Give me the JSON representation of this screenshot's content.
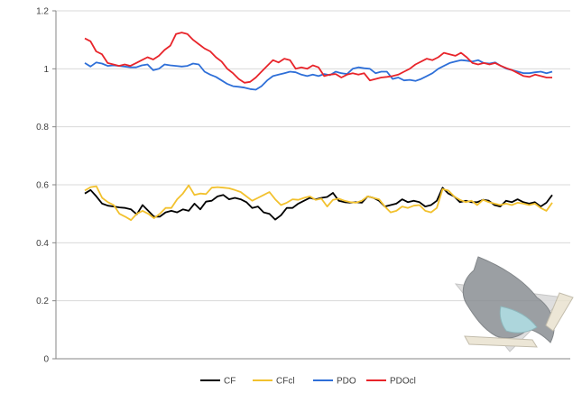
{
  "chart_data": {
    "type": "line",
    "title": "",
    "xlabel": "",
    "ylabel": "",
    "ylim": [
      0,
      1.2
    ],
    "y_ticks": [
      "0",
      "0.2",
      "0.4",
      "0.6",
      "0.8",
      "1",
      "1.2"
    ],
    "grid": "horizontal",
    "legend_position": "bottom",
    "series": [
      {
        "name": "CF",
        "color": "#000000",
        "values": [
          0.57,
          0.582,
          0.56,
          0.535,
          0.528,
          0.525,
          0.522,
          0.52,
          0.515,
          0.498,
          0.53,
          0.51,
          0.49,
          0.49,
          0.505,
          0.51,
          0.505,
          0.515,
          0.51,
          0.535,
          0.515,
          0.542,
          0.545,
          0.56,
          0.565,
          0.55,
          0.555,
          0.55,
          0.54,
          0.52,
          0.525,
          0.505,
          0.5,
          0.48,
          0.495,
          0.52,
          0.52,
          0.535,
          0.545,
          0.555,
          0.55,
          0.555,
          0.558,
          0.572,
          0.545,
          0.54,
          0.538,
          0.54,
          0.538,
          0.56,
          0.555,
          0.545,
          0.525,
          0.53,
          0.535,
          0.55,
          0.54,
          0.545,
          0.54,
          0.525,
          0.53,
          0.545,
          0.59,
          0.57,
          0.56,
          0.54,
          0.545,
          0.54,
          0.54,
          0.548,
          0.545,
          0.53,
          0.525,
          0.545,
          0.54,
          0.55,
          0.54,
          0.535,
          0.54,
          0.525,
          0.538,
          0.565
        ]
      },
      {
        "name": "CFcl",
        "color": "#f2c12e",
        "values": [
          0.58,
          0.592,
          0.595,
          0.555,
          0.54,
          0.53,
          0.5,
          0.49,
          0.478,
          0.5,
          0.51,
          0.5,
          0.485,
          0.5,
          0.52,
          0.52,
          0.55,
          0.57,
          0.598,
          0.565,
          0.57,
          0.568,
          0.59,
          0.592,
          0.59,
          0.588,
          0.582,
          0.575,
          0.56,
          0.545,
          0.555,
          0.565,
          0.575,
          0.55,
          0.53,
          0.538,
          0.55,
          0.548,
          0.555,
          0.56,
          0.548,
          0.552,
          0.525,
          0.548,
          0.552,
          0.545,
          0.54,
          0.538,
          0.545,
          0.56,
          0.555,
          0.55,
          0.525,
          0.505,
          0.51,
          0.525,
          0.52,
          0.528,
          0.53,
          0.51,
          0.505,
          0.52,
          0.585,
          0.58,
          0.56,
          0.548,
          0.54,
          0.545,
          0.53,
          0.548,
          0.54,
          0.535,
          0.53,
          0.535,
          0.53,
          0.538,
          0.535,
          0.53,
          0.535,
          0.52,
          0.51,
          0.538
        ]
      },
      {
        "name": "PDO",
        "color": "#2e6fd8",
        "values": [
          1.02,
          1.008,
          1.022,
          1.018,
          1.01,
          1.012,
          1.01,
          1.008,
          1.005,
          1.005,
          1.012,
          1.015,
          0.995,
          1.0,
          1.015,
          1.012,
          1.01,
          1.008,
          1.01,
          1.018,
          1.015,
          0.99,
          0.98,
          0.972,
          0.96,
          0.948,
          0.94,
          0.938,
          0.935,
          0.93,
          0.928,
          0.94,
          0.96,
          0.975,
          0.98,
          0.985,
          0.99,
          0.988,
          0.98,
          0.975,
          0.98,
          0.975,
          0.982,
          0.978,
          0.99,
          0.985,
          0.982,
          1.0,
          1.005,
          1.002,
          1.0,
          0.985,
          0.99,
          0.99,
          0.965,
          0.97,
          0.96,
          0.962,
          0.958,
          0.965,
          0.975,
          0.985,
          1.0,
          1.01,
          1.02,
          1.025,
          1.03,
          1.028,
          1.025,
          1.03,
          1.02,
          1.018,
          1.022,
          1.01,
          1.0,
          0.995,
          0.99,
          0.985,
          0.985,
          0.988,
          0.99,
          0.985,
          0.99
        ]
      },
      {
        "name": "PDOcl",
        "color": "#e8242a",
        "values": [
          1.105,
          1.095,
          1.06,
          1.05,
          1.02,
          1.015,
          1.01,
          1.015,
          1.01,
          1.02,
          1.03,
          1.04,
          1.032,
          1.045,
          1.065,
          1.08,
          1.12,
          1.125,
          1.12,
          1.1,
          1.085,
          1.07,
          1.06,
          1.04,
          1.025,
          1.0,
          0.985,
          0.965,
          0.952,
          0.955,
          0.97,
          0.99,
          1.01,
          1.03,
          1.022,
          1.035,
          1.03,
          1.0,
          1.005,
          1.0,
          1.012,
          1.005,
          0.975,
          0.98,
          0.982,
          0.97,
          0.98,
          0.985,
          0.98,
          0.985,
          0.96,
          0.965,
          0.97,
          0.972,
          0.975,
          0.98,
          0.99,
          1.0,
          1.015,
          1.025,
          1.035,
          1.03,
          1.04,
          1.055,
          1.05,
          1.045,
          1.055,
          1.04,
          1.02,
          1.015,
          1.02,
          1.015,
          1.02,
          1.01,
          1.002,
          0.995,
          0.985,
          0.975,
          0.972,
          0.98,
          0.975,
          0.97,
          0.97
        ]
      }
    ]
  }
}
